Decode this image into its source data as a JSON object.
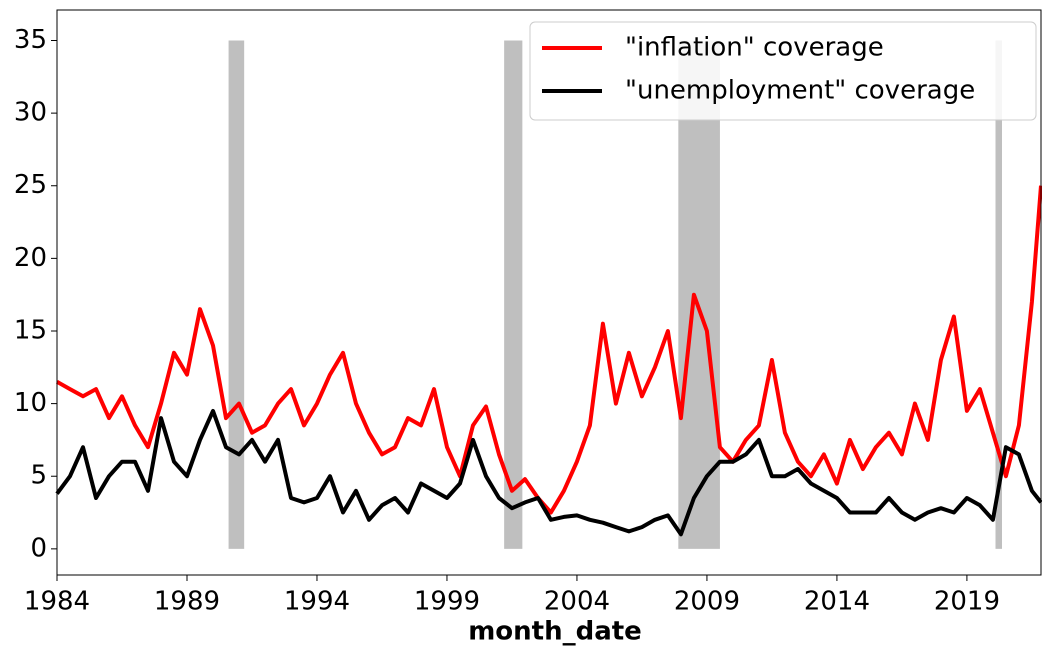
{
  "chart_data": {
    "type": "line",
    "x_label": "month_date",
    "xlim": [
      1984,
      2021.85
    ],
    "ylim": [
      -1.8,
      37.1
    ],
    "xticks": [
      1984,
      1989,
      1994,
      1999,
      2004,
      2009,
      2014,
      2019
    ],
    "yticks": [
      0,
      5,
      10,
      15,
      20,
      25,
      30,
      35
    ],
    "grid": false,
    "legend": "upper right",
    "shade_color": "#bfbfbf",
    "shade_ylim": [
      0,
      35
    ],
    "shaded_periods": [
      {
        "start": 1990.6,
        "end": 1991.2
      },
      {
        "start": 2001.2,
        "end": 2001.9
      },
      {
        "start": 2007.9,
        "end": 2009.5
      },
      {
        "start": 2020.1,
        "end": 2020.35
      }
    ],
    "x": [
      1984.0,
      1984.5,
      1985.0,
      1985.5,
      1986.0,
      1986.5,
      1987.0,
      1987.5,
      1988.0,
      1988.5,
      1989.0,
      1989.5,
      1990.0,
      1990.5,
      1991.0,
      1991.5,
      1992.0,
      1992.5,
      1993.0,
      1993.5,
      1994.0,
      1994.5,
      1995.0,
      1995.5,
      1996.0,
      1996.5,
      1997.0,
      1997.5,
      1998.0,
      1998.5,
      1999.0,
      1999.5,
      2000.0,
      2000.5,
      2001.0,
      2001.5,
      2002.0,
      2002.5,
      2003.0,
      2003.5,
      2004.0,
      2004.5,
      2005.0,
      2005.5,
      2006.0,
      2006.5,
      2007.0,
      2007.5,
      2008.0,
      2008.5,
      2009.0,
      2009.5,
      2010.0,
      2010.5,
      2011.0,
      2011.5,
      2012.0,
      2012.5,
      2013.0,
      2013.5,
      2014.0,
      2014.5,
      2015.0,
      2015.5,
      2016.0,
      2016.5,
      2017.0,
      2017.5,
      2018.0,
      2018.5,
      2019.0,
      2019.5,
      2020.0,
      2020.5,
      2021.0,
      2021.5,
      2021.85
    ],
    "series": [
      {
        "name": "\"inflation\" coverage",
        "color": "#ff0000",
        "values": [
          11.5,
          11.0,
          10.5,
          11.0,
          9.0,
          10.5,
          8.5,
          7.0,
          10.0,
          13.5,
          12.0,
          16.5,
          14.0,
          9.0,
          10.0,
          8.0,
          8.5,
          10.0,
          11.0,
          8.5,
          10.0,
          12.0,
          13.5,
          10.0,
          8.0,
          6.5,
          7.0,
          9.0,
          8.5,
          11.0,
          7.0,
          5.0,
          8.5,
          9.8,
          6.5,
          4.0,
          4.8,
          3.5,
          2.5,
          4.0,
          6.0,
          8.5,
          15.5,
          10.0,
          13.5,
          10.5,
          12.5,
          15.0,
          9.0,
          17.5,
          15.0,
          7.0,
          6.0,
          7.5,
          8.5,
          13.0,
          8.0,
          6.0,
          5.0,
          6.5,
          4.5,
          7.5,
          5.5,
          7.0,
          8.0,
          6.5,
          10.0,
          7.5,
          13.0,
          16.0,
          9.5,
          11.0,
          8.0,
          5.0,
          8.5,
          17.0,
          25.0
        ]
      },
      {
        "name": "\"unemployment\" coverage",
        "color": "#000000",
        "values": [
          3.8,
          5.0,
          7.0,
          3.5,
          5.0,
          6.0,
          6.0,
          4.0,
          9.0,
          6.0,
          5.0,
          7.5,
          9.5,
          7.0,
          6.5,
          7.5,
          6.0,
          7.5,
          3.5,
          3.2,
          3.5,
          5.0,
          2.5,
          4.0,
          2.0,
          3.0,
          3.5,
          2.5,
          4.5,
          4.0,
          3.5,
          4.5,
          7.5,
          5.0,
          3.5,
          2.8,
          3.2,
          3.5,
          2.0,
          2.2,
          2.3,
          2.0,
          1.8,
          1.5,
          1.2,
          1.5,
          2.0,
          2.3,
          1.0,
          3.5,
          5.0,
          6.0,
          6.0,
          6.5,
          7.5,
          5.0,
          5.0,
          5.5,
          4.5,
          4.0,
          3.5,
          2.5,
          2.5,
          2.5,
          3.5,
          2.5,
          2.0,
          2.5,
          2.8,
          2.5,
          3.5,
          3.0,
          2.0,
          7.0,
          6.5,
          4.0,
          3.2
        ]
      }
    ]
  }
}
